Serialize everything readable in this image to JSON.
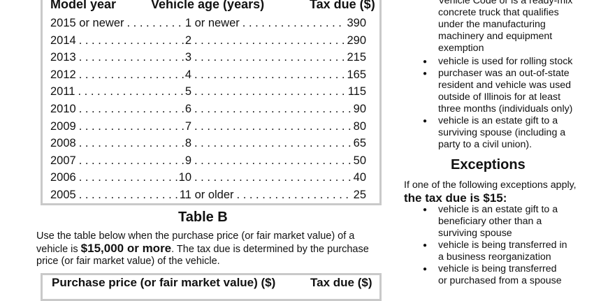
{
  "table_a": {
    "headers": {
      "model_year": "Model year",
      "vehicle_age": "Vehicle age (years)",
      "tax_due": "Tax due ($)"
    },
    "rows": [
      {
        "year": "2015 or newer",
        "age": "1 or newer",
        "tax": "390"
      },
      {
        "year": "2014",
        "age": "2",
        "tax": "290"
      },
      {
        "year": "2013",
        "age": "3",
        "tax": "215"
      },
      {
        "year": "2012",
        "age": "4",
        "tax": "165"
      },
      {
        "year": "2011",
        "age": "5",
        "tax": "115"
      },
      {
        "year": "2010",
        "age": "6",
        "tax": "90"
      },
      {
        "year": "2009",
        "age": "7",
        "tax": "80"
      },
      {
        "year": "2008",
        "age": "8",
        "tax": "65"
      },
      {
        "year": "2007",
        "age": "9",
        "tax": "50"
      },
      {
        "year": "2006",
        "age": "10",
        "tax": "40"
      },
      {
        "year": "2005",
        "age": "11 or older",
        "tax": "25"
      }
    ]
  },
  "table_b": {
    "title": "Table B",
    "intro_1": "Use the table below when the purchase price (or fair market value) of a vehicle is ",
    "intro_bold": "$15,000 or more",
    "intro_2": ". The tax due is determined by the purchase price (or fair market value) of the vehicle.",
    "header_price": "Purchase price (or fair market value) ($)",
    "header_tax": "Tax due ($)"
  },
  "right_column": {
    "cont_lines": [
      "Vehicle Code or is a ready-mix",
      "concrete truck that qualifies",
      "under the manufacturing",
      "machinery and equipment",
      "exemption"
    ],
    "bullets": [
      [
        "vehicle is used for rolling stock"
      ],
      [
        "purchaser was an out-of-state",
        "resident and vehicle was used",
        "outside of Illinois for at least",
        "three months (individuals only)"
      ],
      [
        "vehicle is an estate gift to a",
        "surviving spouse (including a",
        "party to a civil union)."
      ]
    ],
    "exceptions_title": "Exceptions",
    "if_line": "If one of the following exceptions apply,",
    "tax_due_15": "the tax due is $15:",
    "exception_bullets": [
      [
        "vehicle is an estate gift to a",
        "beneficiary other than a",
        "surviving spouse"
      ],
      [
        "vehicle is being transferred in",
        "a business reorganization"
      ],
      [
        "vehicle is being transferred",
        "or purchased from a spouse"
      ]
    ]
  }
}
